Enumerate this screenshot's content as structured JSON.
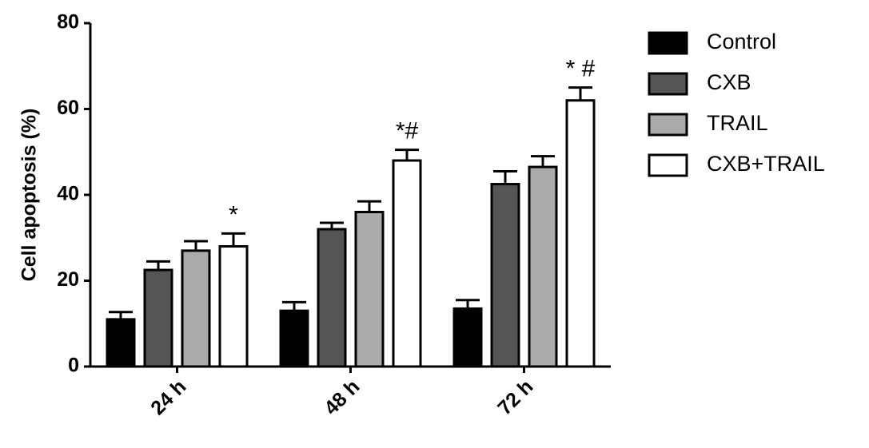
{
  "chart_data": {
    "type": "bar",
    "ylabel": "Cell apoptosis (%)",
    "categories": [
      "24 h",
      "48 h",
      "72 h"
    ],
    "series": [
      {
        "name": "Control",
        "color": "#000000",
        "values": [
          11,
          13,
          13.5
        ],
        "errors": [
          1.7,
          2,
          2
        ]
      },
      {
        "name": "CXB",
        "color": "#555555",
        "values": [
          22.5,
          32,
          42.5
        ],
        "errors": [
          2,
          1.5,
          3
        ]
      },
      {
        "name": "TRAIL",
        "color": "#aaaaaa",
        "values": [
          27,
          36,
          46.5
        ],
        "errors": [
          2.2,
          2.5,
          2.5
        ]
      },
      {
        "name": "CXB+TRAIL",
        "color": "#ffffff",
        "values": [
          28,
          48,
          62
        ],
        "errors": [
          3,
          2.5,
          3
        ],
        "annotations": [
          "*",
          "*#",
          "* #"
        ]
      }
    ],
    "ylim": [
      0,
      80
    ],
    "yticks": [
      0,
      20,
      40,
      60,
      80
    ],
    "legend": "right"
  }
}
